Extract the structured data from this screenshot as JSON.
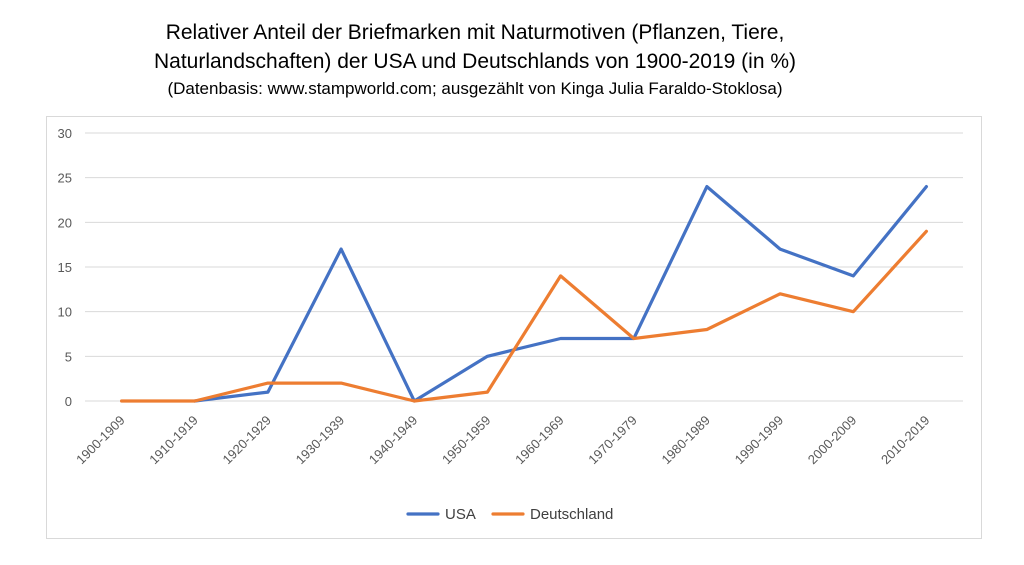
{
  "chart_data": {
    "type": "line",
    "title": "Relativer Anteil der Briefmarken mit Naturmotiven (Pflanzen, Tiere, Naturlandschaften) der USA und Deutschlands von 1900-2019 (in %)",
    "title_lines": [
      "Relativer Anteil der Briefmarken mit Naturmotiven (Pflanzen, Tiere,",
      "Naturlandschaften) der USA und Deutschlands von 1900-2019 (in %)"
    ],
    "subtitle": "(Datenbasis: www.stampworld.com; ausgezählt von Kinga Julia Faraldo-Stoklosa)",
    "categories": [
      "1900-1909",
      "1910-1919",
      "1920-1929",
      "1930-1939",
      "1940-1949",
      "1950-1959",
      "1960-1969",
      "1970-1979",
      "1980-1989",
      "1990-1999",
      "2000-2009",
      "2010-2019"
    ],
    "series": [
      {
        "name": "USA",
        "color": "#4472c4",
        "values": [
          null,
          0,
          1,
          17,
          0,
          5,
          7,
          7,
          24,
          17,
          14,
          24
        ]
      },
      {
        "name": "Deutschland",
        "color": "#ed7d31",
        "values": [
          0,
          0,
          2,
          2,
          0,
          1,
          14,
          7,
          8,
          12,
          10,
          19
        ]
      }
    ],
    "ylim": [
      0,
      30
    ],
    "yticks": [
      0,
      5,
      10,
      15,
      20,
      25,
      30
    ],
    "xlabel": "",
    "ylabel": "",
    "grid": true,
    "legend_position": "bottom"
  }
}
